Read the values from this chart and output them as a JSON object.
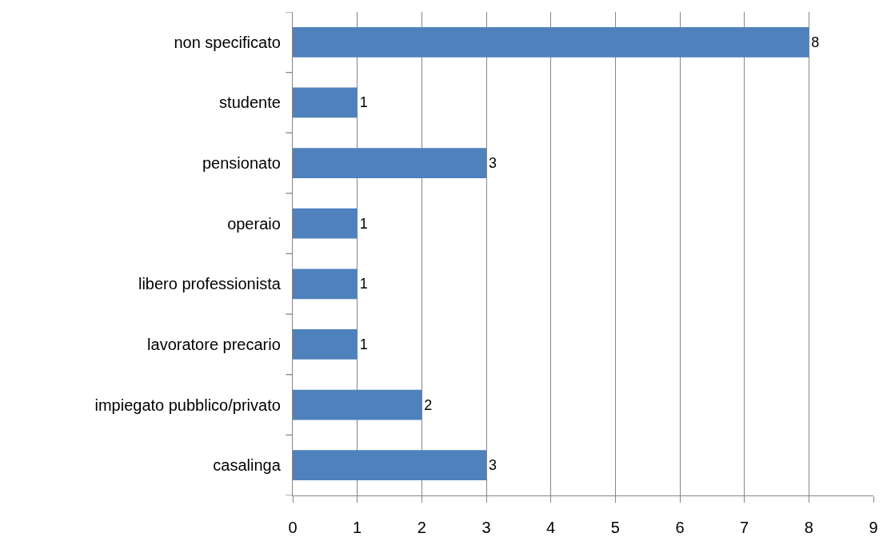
{
  "chart_data": {
    "type": "bar",
    "orientation": "horizontal",
    "categories": [
      "non specificato",
      "studente",
      "pensionato",
      "operaio",
      "libero professionista",
      "lavoratore precario",
      "impiegato pubblico/privato",
      "casalinga"
    ],
    "values": [
      8,
      1,
      3,
      1,
      1,
      1,
      2,
      3
    ],
    "color": "#4f81bd",
    "xlim": [
      0,
      9
    ],
    "xticks": [
      0,
      1,
      2,
      3,
      4,
      5,
      6,
      7,
      8,
      9
    ],
    "grid": "x",
    "data_labels": true
  }
}
